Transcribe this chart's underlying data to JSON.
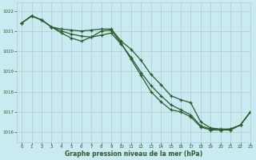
{
  "title": "Graphe pression niveau de la mer (hPa)",
  "bg_color": "#c8eaf0",
  "grid_color": "#b0cccc",
  "line_color": "#2d5a2d",
  "xlim": [
    -0.5,
    23
  ],
  "ylim": [
    1015.5,
    1022.4
  ],
  "yticks": [
    1016,
    1017,
    1018,
    1019,
    1020,
    1021,
    1022
  ],
  "xticks": [
    0,
    1,
    2,
    3,
    4,
    5,
    6,
    7,
    8,
    9,
    10,
    11,
    12,
    13,
    14,
    15,
    16,
    17,
    18,
    19,
    20,
    21,
    22,
    23
  ],
  "line1_x": [
    0,
    1,
    2,
    3,
    4,
    5,
    6,
    7,
    8,
    9,
    10,
    11,
    12,
    13,
    14,
    15,
    16,
    17,
    18,
    19,
    20,
    21,
    22,
    23
  ],
  "line1_y": [
    1021.4,
    1021.75,
    1021.55,
    1021.2,
    1021.1,
    1021.05,
    1021.0,
    1021.05,
    1021.1,
    1021.1,
    1020.5,
    1020.1,
    1019.55,
    1018.85,
    1018.35,
    1017.8,
    1017.6,
    1017.45,
    1016.5,
    1016.2,
    1016.15,
    1016.15,
    1016.35,
    1017.0
  ],
  "line2_x": [
    0,
    1,
    2,
    3,
    4,
    5,
    6,
    7,
    8,
    9,
    10,
    11,
    12,
    13,
    14,
    15,
    16,
    17,
    18,
    19,
    20,
    21,
    22,
    23
  ],
  "line2_y": [
    1021.4,
    1021.75,
    1021.55,
    1021.2,
    1021.0,
    1020.85,
    1020.75,
    1020.7,
    1020.8,
    1020.9,
    1020.35,
    1019.7,
    1018.95,
    1018.3,
    1017.8,
    1017.35,
    1017.1,
    1016.85,
    1016.3,
    1016.15,
    1016.1,
    1016.1,
    1016.35,
    1017.0
  ],
  "line3_x": [
    0,
    1,
    2,
    3,
    4,
    5,
    6,
    7,
    8,
    9,
    10,
    11,
    12,
    13,
    14,
    15,
    16,
    17,
    18,
    19,
    20,
    21,
    22,
    23
  ],
  "line3_y": [
    1021.4,
    1021.75,
    1021.55,
    1021.2,
    1020.9,
    1020.65,
    1020.5,
    1020.7,
    1021.0,
    1021.05,
    1020.4,
    1019.6,
    1018.8,
    1018.0,
    1017.5,
    1017.1,
    1017.0,
    1016.75,
    1016.25,
    1016.1,
    1016.1,
    1016.15,
    1016.35,
    1017.0
  ]
}
